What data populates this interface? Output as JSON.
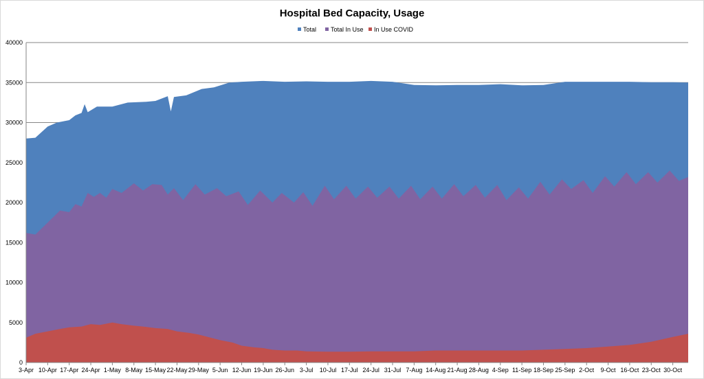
{
  "chart_data": {
    "type": "area",
    "title": "Hospital Bed Capacity, Usage",
    "xlabel": "",
    "ylabel": "",
    "ylim": [
      0,
      40000
    ],
    "yticks": [
      0,
      5000,
      10000,
      15000,
      20000,
      25000,
      30000,
      35000,
      40000
    ],
    "grid": "horizontal",
    "legend_position": "top",
    "x_start": "2020-04-03",
    "x_tick_labels": [
      "3-Apr",
      "10-Apr",
      "17-Apr",
      "24-Apr",
      "1-May",
      "8-May",
      "15-May",
      "22-May",
      "29-May",
      "5-Jun",
      "12-Jun",
      "19-Jun",
      "26-Jun",
      "3-Jul",
      "10-Jul",
      "17-Jul",
      "24-Jul",
      "31-Jul",
      "7-Aug",
      "14-Aug",
      "21-Aug",
      "28-Aug",
      "4-Sep",
      "11-Sep",
      "18-Sep",
      "25-Sep",
      "2-Oct",
      "9-Oct",
      "16-Oct",
      "23-Oct",
      "30-Oct"
    ],
    "series": [
      {
        "name": "Total",
        "color": "#4f81bd",
        "points": [
          [
            "3-Apr",
            28000
          ],
          [
            "6-Apr",
            28100
          ],
          [
            "10-Apr",
            29500
          ],
          [
            "13-Apr",
            30000
          ],
          [
            "17-Apr",
            30300
          ],
          [
            "19-Apr",
            30900
          ],
          [
            "21-Apr",
            31200
          ],
          [
            "22-Apr",
            32300
          ],
          [
            "23-Apr",
            31300
          ],
          [
            "26-Apr",
            32000
          ],
          [
            "29-Apr",
            32000
          ],
          [
            "1-May",
            32000
          ],
          [
            "6-May",
            32500
          ],
          [
            "12-May",
            32600
          ],
          [
            "15-May",
            32700
          ],
          [
            "19-May",
            33300
          ],
          [
            "20-May",
            31400
          ],
          [
            "21-May",
            33200
          ],
          [
            "25-May",
            33400
          ],
          [
            "30-May",
            34200
          ],
          [
            "3-Jun",
            34400
          ],
          [
            "8-Jun",
            35000
          ],
          [
            "12-Jun",
            35100
          ],
          [
            "19-Jun",
            35200
          ],
          [
            "26-Jun",
            35100
          ],
          [
            "3-Jul",
            35150
          ],
          [
            "10-Jul",
            35100
          ],
          [
            "17-Jul",
            35100
          ],
          [
            "24-Jul",
            35200
          ],
          [
            "31-Jul",
            35100
          ],
          [
            "7-Aug",
            34700
          ],
          [
            "14-Aug",
            34650
          ],
          [
            "21-Aug",
            34700
          ],
          [
            "28-Aug",
            34700
          ],
          [
            "4-Sep",
            34800
          ],
          [
            "11-Sep",
            34650
          ],
          [
            "18-Sep",
            34700
          ],
          [
            "25-Sep",
            35100
          ],
          [
            "2-Oct",
            35100
          ],
          [
            "9-Oct",
            35100
          ],
          [
            "16-Oct",
            35100
          ],
          [
            "23-Oct",
            35050
          ],
          [
            "30-Oct",
            35050
          ],
          [
            "4-Nov",
            35000
          ]
        ]
      },
      {
        "name": "Total In Use",
        "color": "#8064a2",
        "points": [
          [
            "3-Apr",
            16200
          ],
          [
            "6-Apr",
            16000
          ],
          [
            "10-Apr",
            17500
          ],
          [
            "14-Apr",
            19000
          ],
          [
            "17-Apr",
            18800
          ],
          [
            "19-Apr",
            19800
          ],
          [
            "21-Apr",
            19500
          ],
          [
            "23-Apr",
            21200
          ],
          [
            "25-Apr",
            20700
          ],
          [
            "27-Apr",
            21200
          ],
          [
            "29-Apr",
            20600
          ],
          [
            "1-May",
            21700
          ],
          [
            "4-May",
            21200
          ],
          [
            "8-May",
            22400
          ],
          [
            "11-May",
            21500
          ],
          [
            "14-May",
            22300
          ],
          [
            "17-May",
            22200
          ],
          [
            "19-May",
            21000
          ],
          [
            "21-May",
            21800
          ],
          [
            "24-May",
            20300
          ],
          [
            "28-May",
            22300
          ],
          [
            "31-May",
            21000
          ],
          [
            "4-Jun",
            21800
          ],
          [
            "7-Jun",
            20800
          ],
          [
            "11-Jun",
            21400
          ],
          [
            "14-Jun",
            19700
          ],
          [
            "18-Jun",
            21500
          ],
          [
            "22-Jun",
            20000
          ],
          [
            "25-Jun",
            21200
          ],
          [
            "29-Jun",
            20000
          ],
          [
            "2-Jul",
            21300
          ],
          [
            "5-Jul",
            19600
          ],
          [
            "9-Jul",
            22100
          ],
          [
            "12-Jul",
            20400
          ],
          [
            "16-Jul",
            22100
          ],
          [
            "19-Jul",
            20500
          ],
          [
            "23-Jul",
            22000
          ],
          [
            "26-Jul",
            20600
          ],
          [
            "30-Jul",
            22000
          ],
          [
            "2-Aug",
            20500
          ],
          [
            "6-Aug",
            22100
          ],
          [
            "9-Aug",
            20400
          ],
          [
            "13-Aug",
            22000
          ],
          [
            "16-Aug",
            20500
          ],
          [
            "20-Aug",
            22300
          ],
          [
            "23-Aug",
            20800
          ],
          [
            "27-Aug",
            22200
          ],
          [
            "30-Aug",
            20600
          ],
          [
            "3-Sep",
            22200
          ],
          [
            "6-Sep",
            20300
          ],
          [
            "10-Sep",
            21900
          ],
          [
            "13-Sep",
            20500
          ],
          [
            "17-Sep",
            22600
          ],
          [
            "20-Sep",
            21000
          ],
          [
            "24-Sep",
            22900
          ],
          [
            "27-Sep",
            21700
          ],
          [
            "1-Oct",
            22800
          ],
          [
            "4-Oct",
            21200
          ],
          [
            "8-Oct",
            23300
          ],
          [
            "11-Oct",
            22000
          ],
          [
            "15-Oct",
            23800
          ],
          [
            "18-Oct",
            22300
          ],
          [
            "22-Oct",
            23800
          ],
          [
            "25-Oct",
            22500
          ],
          [
            "29-Oct",
            24000
          ],
          [
            "1-Nov",
            22700
          ],
          [
            "4-Nov",
            23200
          ]
        ]
      },
      {
        "name": "In Use COVID",
        "color": "#c0504d",
        "points": [
          [
            "3-Apr",
            3100
          ],
          [
            "6-Apr",
            3600
          ],
          [
            "10-Apr",
            3900
          ],
          [
            "14-Apr",
            4200
          ],
          [
            "17-Apr",
            4400
          ],
          [
            "21-Apr",
            4500
          ],
          [
            "24-Apr",
            4800
          ],
          [
            "27-Apr",
            4700
          ],
          [
            "1-May",
            5000
          ],
          [
            "4-May",
            4800
          ],
          [
            "8-May",
            4600
          ],
          [
            "11-May",
            4500
          ],
          [
            "15-May",
            4300
          ],
          [
            "19-May",
            4200
          ],
          [
            "22-May",
            3900
          ],
          [
            "26-May",
            3700
          ],
          [
            "29-May",
            3500
          ],
          [
            "2-Jun",
            3100
          ],
          [
            "5-Jun",
            2800
          ],
          [
            "9-Jun",
            2500
          ],
          [
            "12-Jun",
            2100
          ],
          [
            "16-Jun",
            1900
          ],
          [
            "19-Jun",
            1800
          ],
          [
            "22-Jun",
            1600
          ],
          [
            "26-Jun",
            1500
          ],
          [
            "30-Jun",
            1500
          ],
          [
            "3-Jul",
            1400
          ],
          [
            "10-Jul",
            1350
          ],
          [
            "17-Jul",
            1350
          ],
          [
            "24-Jul",
            1400
          ],
          [
            "31-Jul",
            1400
          ],
          [
            "7-Aug",
            1400
          ],
          [
            "14-Aug",
            1500
          ],
          [
            "21-Aug",
            1500
          ],
          [
            "28-Aug",
            1500
          ],
          [
            "4-Sep",
            1500
          ],
          [
            "11-Sep",
            1500
          ],
          [
            "18-Sep",
            1600
          ],
          [
            "25-Sep",
            1700
          ],
          [
            "2-Oct",
            1800
          ],
          [
            "9-Oct",
            2000
          ],
          [
            "16-Oct",
            2200
          ],
          [
            "23-Oct",
            2600
          ],
          [
            "30-Oct",
            3200
          ],
          [
            "4-Nov",
            3600
          ]
        ]
      }
    ]
  }
}
